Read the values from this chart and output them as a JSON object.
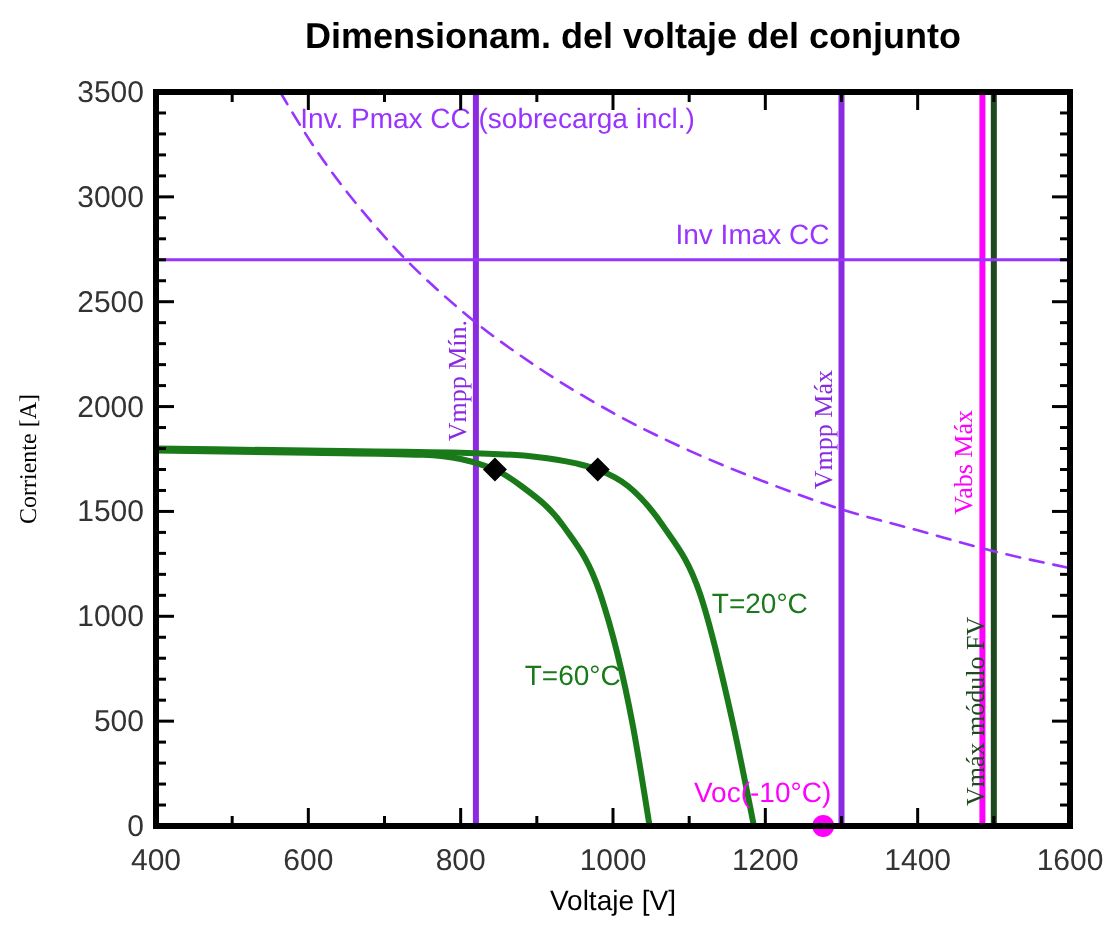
{
  "chart_data": {
    "type": "line",
    "title": "Dimensionam. del voltaje del conjunto",
    "xlabel": "Voltaje [V]",
    "ylabel": "Corriente [A]",
    "xlim": [
      400,
      1600
    ],
    "ylim": [
      0,
      3500
    ],
    "xticks": [
      400,
      {
        "value": 500,
        "label": null
      },
      600,
      {
        "value": 700,
        "label": null
      },
      800,
      {
        "value": 900,
        "label": null
      },
      1000,
      {
        "value": 1100,
        "label": null
      },
      1200,
      {
        "value": 1300,
        "label": null
      },
      1400,
      {
        "value": 1500,
        "label": null
      },
      1600
    ],
    "yticks": [
      0,
      {
        "value": 100,
        "label": null
      },
      {
        "value": 200,
        "label": null
      },
      {
        "value": 300,
        "label": null
      },
      {
        "value": 400,
        "label": null
      },
      500,
      {
        "value": 600,
        "label": null
      },
      {
        "value": 700,
        "label": null
      },
      {
        "value": 800,
        "label": null
      },
      {
        "value": 900,
        "label": null
      },
      1000,
      {
        "value": 1100,
        "label": null
      },
      {
        "value": 1200,
        "label": null
      },
      {
        "value": 1300,
        "label": null
      },
      {
        "value": 1400,
        "label": null
      },
      1500,
      {
        "value": 1600,
        "label": null
      },
      {
        "value": 1700,
        "label": null
      },
      {
        "value": 1800,
        "label": null
      },
      {
        "value": 1900,
        "label": null
      },
      2000,
      {
        "value": 2100,
        "label": null
      },
      {
        "value": 2200,
        "label": null
      },
      {
        "value": 2300,
        "label": null
      },
      {
        "value": 2400,
        "label": null
      },
      2500,
      {
        "value": 2600,
        "label": null
      },
      {
        "value": 2700,
        "label": null
      },
      {
        "value": 2800,
        "label": null
      },
      {
        "value": 2900,
        "label": null
      },
      3000,
      {
        "value": 3100,
        "label": null
      },
      {
        "value": 3200,
        "label": null
      },
      {
        "value": 3300,
        "label": null
      },
      {
        "value": 3400,
        "label": null
      },
      3500
    ],
    "grid": false,
    "series": [
      {
        "name": "Inv. Pmax CC (sobrecarga incl.)",
        "color": "#9933ff",
        "line_style": "dashed",
        "x": [
          563,
          600,
          700,
          800,
          900,
          1000,
          1100,
          1200,
          1300,
          1400,
          1500,
          1600
        ],
        "values": [
          3500,
          3280,
          2810,
          2460,
          2190,
          1970,
          1790,
          1640,
          1510,
          1410,
          1310,
          1230
        ]
      },
      {
        "name": "T=20°C",
        "color": "#1a7a1a",
        "line_style": "solid",
        "x": [
          400,
          600,
          800,
          900,
          950,
          980,
          1020,
          1066,
          1114,
          1158,
          1185
        ],
        "values": [
          1800,
          1790,
          1780,
          1760,
          1730,
          1700,
          1620,
          1430,
          1110,
          480,
          0
        ]
      },
      {
        "name": "T=60°C",
        "color": "#1a7a1a",
        "line_style": "solid",
        "x": [
          400,
          600,
          750,
          800,
          830,
          845,
          880,
          935,
          983,
          1026,
          1048
        ],
        "values": [
          1790,
          1780,
          1770,
          1750,
          1720,
          1700,
          1620,
          1430,
          1110,
          480,
          0
        ]
      },
      {
        "type": "scatter",
        "color": "#000000",
        "marker": "diamond",
        "x": [
          845,
          980
        ],
        "values": [
          1700,
          1700
        ]
      },
      {
        "name": "Voc(-10°C)",
        "type": "scatter",
        "color": "#ff00ff",
        "marker": "circle",
        "x": [
          1276
        ],
        "values": [
          0
        ]
      }
    ],
    "ref_lines": [
      {
        "axis": "x",
        "value": 820,
        "label": "Vmpp Mín.",
        "color": "#8a2be2"
      },
      {
        "axis": "x",
        "value": 1300,
        "label": "Vmpp Máx",
        "color": "#8a2be2"
      },
      {
        "axis": "x",
        "value": 1485,
        "label": "Vabs Máx",
        "color": "#ff00ff"
      },
      {
        "axis": "x",
        "value": 1500,
        "label": "Vmáx módulo FV",
        "color": "#1f4a1f"
      },
      {
        "axis": "y",
        "value": 2700,
        "label": "Inv Imax CC",
        "color": "#9933ff"
      }
    ]
  }
}
